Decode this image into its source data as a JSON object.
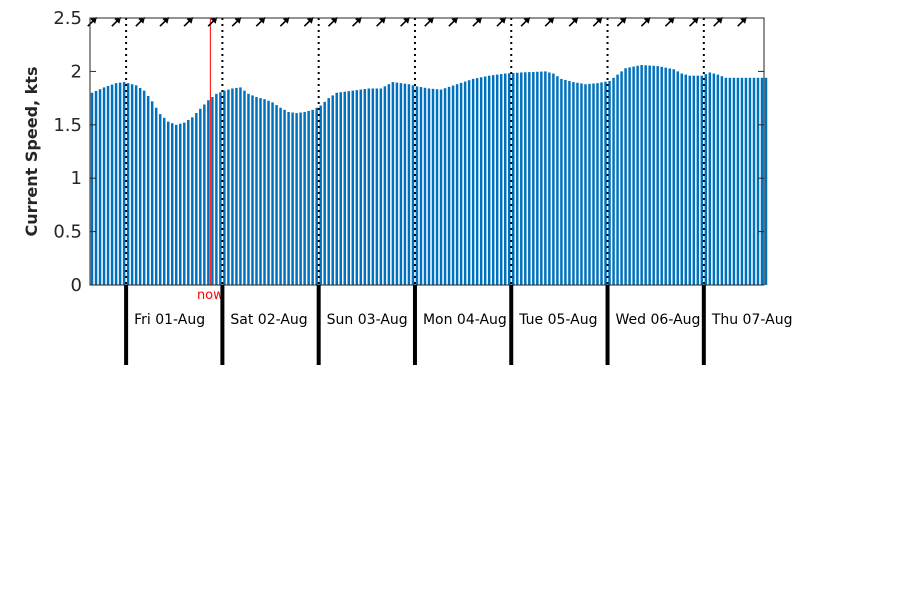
{
  "chart_data": {
    "type": "bar",
    "title": "",
    "xlabel": "",
    "ylabel": "Current Speed, kts",
    "ylim": [
      0,
      2.5
    ],
    "yticks": [
      0,
      0.5,
      1,
      1.5,
      2,
      2.5
    ],
    "ytick_labels": [
      "0",
      "0.5",
      "1",
      "1.5",
      "2",
      "2.5"
    ],
    "xlim_hours": [
      -9,
      159
    ],
    "x_unit": "hours from Fri 01-Aug 00:00",
    "bar_color": "#0072BD",
    "grid": false,
    "legend": "none",
    "days": [
      {
        "label": "Fri 01-Aug",
        "start_hour": 0
      },
      {
        "label": "Sat 02-Aug",
        "start_hour": 24
      },
      {
        "label": "Sun 03-Aug",
        "start_hour": 48
      },
      {
        "label": "Mon 04-Aug",
        "start_hour": 72
      },
      {
        "label": "Tue 05-Aug",
        "start_hour": 96
      },
      {
        "label": "Wed 06-Aug",
        "start_hour": 120
      },
      {
        "label": "Thu 07-Aug",
        "start_hour": 144
      }
    ],
    "now_marker": {
      "label": "now",
      "hour": 21,
      "color": "#FF0000"
    },
    "speed_profile": [
      [
        -9,
        1.8
      ],
      [
        -6,
        1.85
      ],
      [
        -3,
        1.89
      ],
      [
        -1,
        1.9
      ],
      [
        2,
        1.87
      ],
      [
        4,
        1.82
      ],
      [
        6,
        1.72
      ],
      [
        8,
        1.6
      ],
      [
        10,
        1.53
      ],
      [
        12,
        1.5
      ],
      [
        14,
        1.52
      ],
      [
        16,
        1.57
      ],
      [
        18,
        1.65
      ],
      [
        20,
        1.73
      ],
      [
        22,
        1.79
      ],
      [
        24,
        1.82
      ],
      [
        26,
        1.84
      ],
      [
        28,
        1.85
      ],
      [
        30,
        1.79
      ],
      [
        32,
        1.76
      ],
      [
        34,
        1.74
      ],
      [
        36,
        1.71
      ],
      [
        38,
        1.66
      ],
      [
        40,
        1.62
      ],
      [
        42,
        1.61
      ],
      [
        44,
        1.62
      ],
      [
        46,
        1.64
      ],
      [
        48,
        1.68
      ],
      [
        50,
        1.75
      ],
      [
        52,
        1.8
      ],
      [
        56,
        1.82
      ],
      [
        60,
        1.84
      ],
      [
        63,
        1.84
      ],
      [
        66,
        1.9
      ],
      [
        70,
        1.88
      ],
      [
        72,
        1.86
      ],
      [
        75,
        1.84
      ],
      [
        78,
        1.83
      ],
      [
        82,
        1.88
      ],
      [
        86,
        1.93
      ],
      [
        90,
        1.96
      ],
      [
        94,
        1.98
      ],
      [
        98,
        1.99
      ],
      [
        104,
        2.0
      ],
      [
        106,
        1.98
      ],
      [
        108,
        1.93
      ],
      [
        111,
        1.9
      ],
      [
        114,
        1.88
      ],
      [
        117,
        1.89
      ],
      [
        120,
        1.91
      ],
      [
        122,
        1.97
      ],
      [
        124,
        2.03
      ],
      [
        128,
        2.06
      ],
      [
        132,
        2.05
      ],
      [
        136,
        2.02
      ],
      [
        138,
        1.98
      ],
      [
        140,
        1.96
      ],
      [
        143,
        1.96
      ],
      [
        145,
        1.99
      ],
      [
        147,
        1.97
      ],
      [
        149,
        1.94
      ],
      [
        152,
        1.94
      ],
      [
        156,
        1.94
      ],
      [
        159,
        1.94
      ]
    ],
    "direction_arrow_interval_hours": 6
  }
}
